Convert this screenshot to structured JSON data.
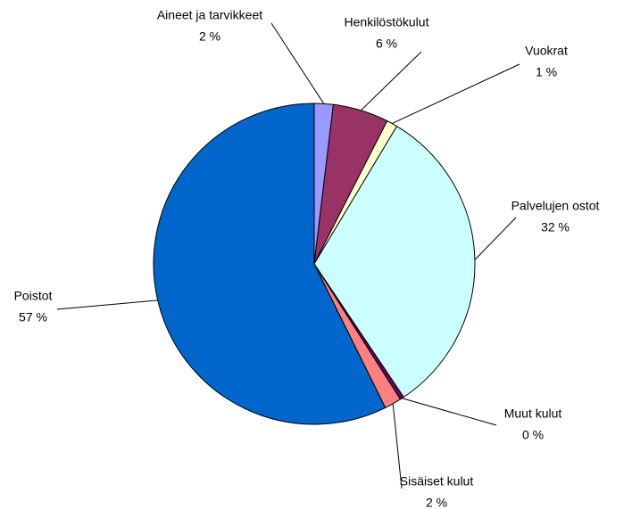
{
  "chart_data": {
    "type": "pie",
    "categories": [
      "Aineet ja tarvikkeet",
      "Henkilöstökulut",
      "Vuokrat",
      "Palvelujen ostot",
      "Muut kulut",
      "Sisäiset kulut",
      "Poistot"
    ],
    "values": [
      1.9,
      5.6,
      1.1,
      32,
      0.4,
      1.7,
      57.3
    ],
    "value_labels": [
      "2 %",
      "6 %",
      "1 %",
      "32 %",
      "0 %",
      "2 %",
      "57 %"
    ],
    "colors": [
      "#9999ff",
      "#993366",
      "#ffffcc",
      "#ccffff",
      "#660066",
      "#ff8080",
      "#0066cc"
    ]
  }
}
